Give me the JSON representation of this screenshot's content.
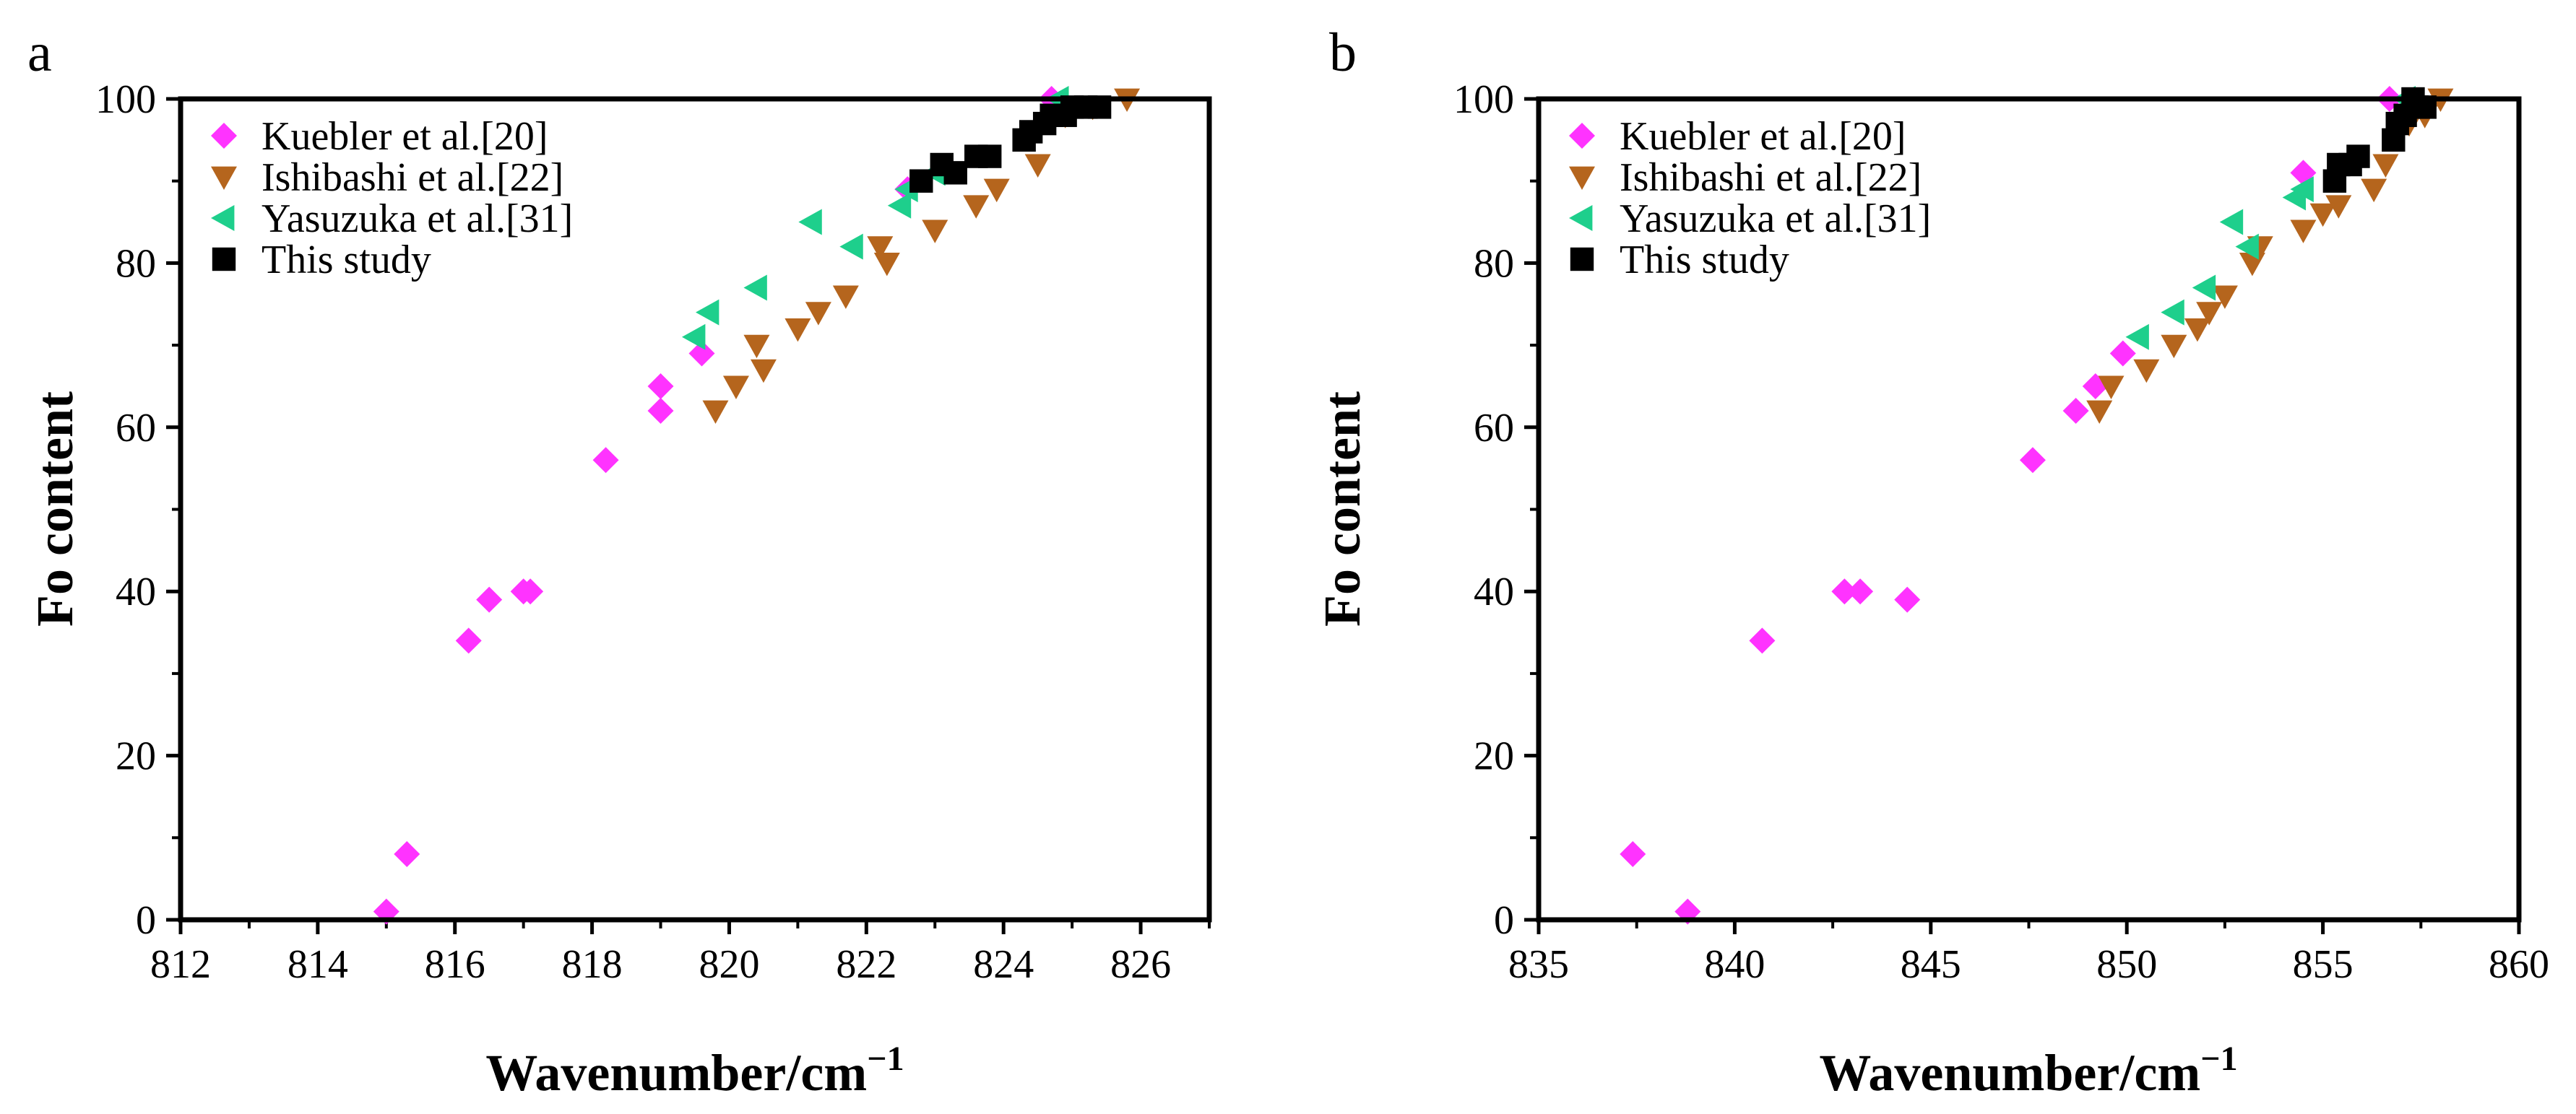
{
  "chart_data": [
    {
      "panel": "a",
      "type": "scatter",
      "xlabel": "Wavenumber/cm",
      "xlabel_sup": "−1",
      "ylabel": "Fo content",
      "xlim": [
        812,
        827
      ],
      "ylim": [
        0,
        100
      ],
      "xticks": [
        812,
        814,
        816,
        818,
        820,
        822,
        824,
        826
      ],
      "yticks": [
        0,
        20,
        40,
        60,
        80,
        100
      ],
      "legend_position": "top-left",
      "series": [
        {
          "name": "Kuebler et al.[20]",
          "marker": "diamond",
          "color": "#ff33ff",
          "points": [
            [
              815.0,
              1
            ],
            [
              815.3,
              8
            ],
            [
              816.2,
              34
            ],
            [
              816.5,
              39
            ],
            [
              817.0,
              40
            ],
            [
              817.1,
              40
            ],
            [
              818.2,
              56
            ],
            [
              819.0,
              62
            ],
            [
              819.0,
              65
            ],
            [
              819.6,
              69
            ],
            [
              822.6,
              89
            ],
            [
              824.7,
              100
            ]
          ]
        },
        {
          "name": "Ishibashi et al.[22]",
          "marker": "triangle-down",
          "color": "#b5651d",
          "points": [
            [
              819.8,
              62
            ],
            [
              820.1,
              65
            ],
            [
              820.5,
              67
            ],
            [
              820.4,
              70
            ],
            [
              821.0,
              72
            ],
            [
              821.3,
              74
            ],
            [
              821.7,
              76
            ],
            [
              822.3,
              80
            ],
            [
              822.2,
              82
            ],
            [
              823.0,
              84
            ],
            [
              823.6,
              87
            ],
            [
              823.9,
              89
            ],
            [
              824.5,
              92
            ],
            [
              824.9,
              98
            ],
            [
              825.3,
              99
            ],
            [
              825.8,
              100
            ]
          ]
        },
        {
          "name": "Yasuzuka et al.[31]",
          "marker": "triangle-left",
          "color": "#1ecf8c",
          "points": [
            [
              819.5,
              71
            ],
            [
              819.7,
              74
            ],
            [
              820.4,
              77
            ],
            [
              821.2,
              85
            ],
            [
              821.8,
              82
            ],
            [
              822.5,
              87
            ],
            [
              822.6,
              89
            ],
            [
              823.0,
              91
            ],
            [
              824.8,
              100
            ]
          ]
        },
        {
          "name": "This study",
          "marker": "square",
          "color": "#000000",
          "points": [
            [
              822.8,
              90
            ],
            [
              823.1,
              92
            ],
            [
              823.3,
              91
            ],
            [
              823.6,
              93
            ],
            [
              823.8,
              93
            ],
            [
              824.3,
              95
            ],
            [
              824.4,
              96
            ],
            [
              824.6,
              97
            ],
            [
              824.7,
              98
            ],
            [
              824.9,
              98
            ],
            [
              825.0,
              99
            ],
            [
              825.2,
              99
            ],
            [
              825.4,
              99
            ]
          ]
        }
      ]
    },
    {
      "panel": "b",
      "type": "scatter",
      "xlabel": "Wavenumber/cm",
      "xlabel_sup": "−1",
      "ylabel": "Fo content",
      "xlim": [
        835,
        860
      ],
      "ylim": [
        0,
        100
      ],
      "xticks": [
        835,
        840,
        845,
        850,
        855,
        860
      ],
      "yticks": [
        0,
        20,
        40,
        60,
        80,
        100
      ],
      "legend_position": "top-left",
      "series": [
        {
          "name": "Kuebler et al.[20]",
          "marker": "diamond",
          "color": "#ff33ff",
          "points": [
            [
              837.4,
              8
            ],
            [
              838.8,
              1
            ],
            [
              840.7,
              34
            ],
            [
              842.8,
              40
            ],
            [
              843.2,
              40
            ],
            [
              844.4,
              39
            ],
            [
              847.6,
              56
            ],
            [
              848.7,
              62
            ],
            [
              849.2,
              65
            ],
            [
              849.9,
              69
            ],
            [
              854.5,
              91
            ],
            [
              856.7,
              100
            ]
          ]
        },
        {
          "name": "Ishibashi et al.[22]",
          "marker": "triangle-down",
          "color": "#b5651d",
          "points": [
            [
              849.3,
              62
            ],
            [
              849.6,
              65
            ],
            [
              850.5,
              67
            ],
            [
              851.2,
              70
            ],
            [
              851.8,
              72
            ],
            [
              852.1,
              74
            ],
            [
              852.5,
              76
            ],
            [
              853.2,
              80
            ],
            [
              853.4,
              82
            ],
            [
              854.5,
              84
            ],
            [
              855.0,
              86
            ],
            [
              855.4,
              87
            ],
            [
              856.3,
              89
            ],
            [
              856.6,
              92
            ],
            [
              857.2,
              97
            ],
            [
              857.6,
              98
            ],
            [
              858.0,
              100
            ]
          ]
        },
        {
          "name": "Yasuzuka et al.[31]",
          "marker": "triangle-left",
          "color": "#1ecf8c",
          "points": [
            [
              850.3,
              71
            ],
            [
              851.2,
              74
            ],
            [
              852.0,
              77
            ],
            [
              852.7,
              85
            ],
            [
              853.1,
              82
            ],
            [
              854.3,
              88
            ],
            [
              854.5,
              89
            ],
            [
              857.1,
              100
            ]
          ]
        },
        {
          "name": "This study",
          "marker": "square",
          "color": "#000000",
          "points": [
            [
              855.3,
              90
            ],
            [
              855.4,
              92
            ],
            [
              855.7,
              92
            ],
            [
              855.9,
              93
            ],
            [
              856.8,
              95
            ],
            [
              856.9,
              97
            ],
            [
              857.1,
              98
            ],
            [
              857.4,
              99
            ],
            [
              857.6,
              99
            ],
            [
              857.3,
              100
            ]
          ]
        }
      ]
    }
  ]
}
